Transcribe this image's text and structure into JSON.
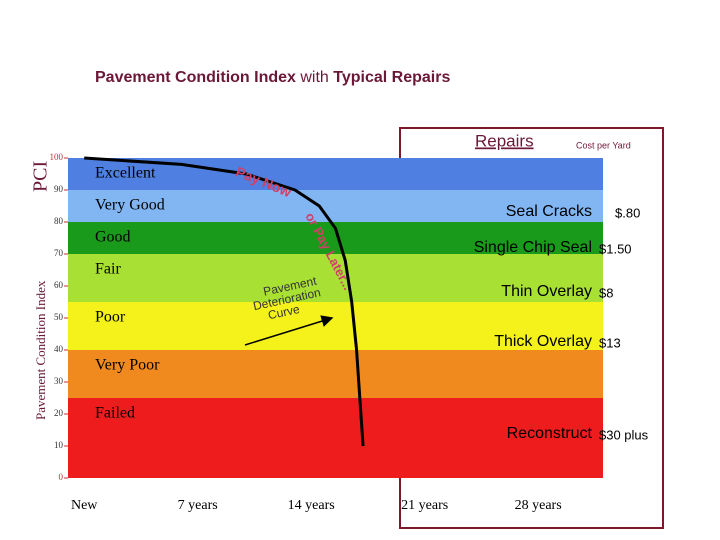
{
  "chart_data": {
    "type": "band",
    "title": "Pavement Condition Index",
    "title_joiner": "with",
    "title_tail": "Typical Repairs",
    "y_label": "Pavement Condition Index",
    "y_label_abbr": "PCI",
    "ylim": [
      0,
      100
    ],
    "yticks": [
      0,
      10,
      20,
      30,
      40,
      50,
      60,
      70,
      80,
      90,
      100
    ],
    "xlim": [
      -1,
      32
    ],
    "xticks": [
      {
        "value": 0,
        "label": "New"
      },
      {
        "value": 7,
        "label": "7 years"
      },
      {
        "value": 14,
        "label": "14 years"
      },
      {
        "value": 21,
        "label": "21 years"
      },
      {
        "value": 28,
        "label": "28 years"
      }
    ],
    "bands": [
      {
        "name": "Excellent",
        "range": [
          90,
          100
        ],
        "color": "#4f7fe0"
      },
      {
        "name": "Very Good",
        "range": [
          80,
          90
        ],
        "color": "#82b6f2"
      },
      {
        "name": "Good",
        "range": [
          70,
          80
        ],
        "color": "#1a9a1a"
      },
      {
        "name": "Fair",
        "range": [
          55,
          70
        ],
        "color": "#a8e034"
      },
      {
        "name": "Poor",
        "range": [
          40,
          55
        ],
        "color": "#f4f21a"
      },
      {
        "name": "Very Poor",
        "range": [
          25,
          40
        ],
        "color": "#f08a1e"
      },
      {
        "name": "Failed",
        "range": [
          0,
          25
        ],
        "color": "#ee1c1c"
      }
    ],
    "curve": {
      "x": [
        0,
        6,
        10,
        13,
        14.5,
        15.5,
        16.1,
        16.5,
        16.8,
        17,
        17.2
      ],
      "y": [
        100,
        98,
        95,
        90,
        85,
        78,
        68,
        55,
        40,
        25,
        10
      ]
    },
    "curve_labels": {
      "pay_now": "Pay Now",
      "pay_later": "or Pay Later...",
      "curve_name": [
        "Pavement",
        "Deterioration",
        "Curve"
      ]
    },
    "repairs_header": "Repairs",
    "cost_header": "Cost per Yard",
    "repairs": [
      {
        "name": "Seal Cracks",
        "cost": "$.80"
      },
      {
        "name": "Single Chip Seal",
        "cost": "$1.50"
      },
      {
        "name": "Thin Overlay",
        "cost": "$8"
      },
      {
        "name": "Thick Overlay",
        "cost": "$13"
      },
      {
        "name": "Reconstruct",
        "cost": "$30 plus"
      }
    ]
  }
}
